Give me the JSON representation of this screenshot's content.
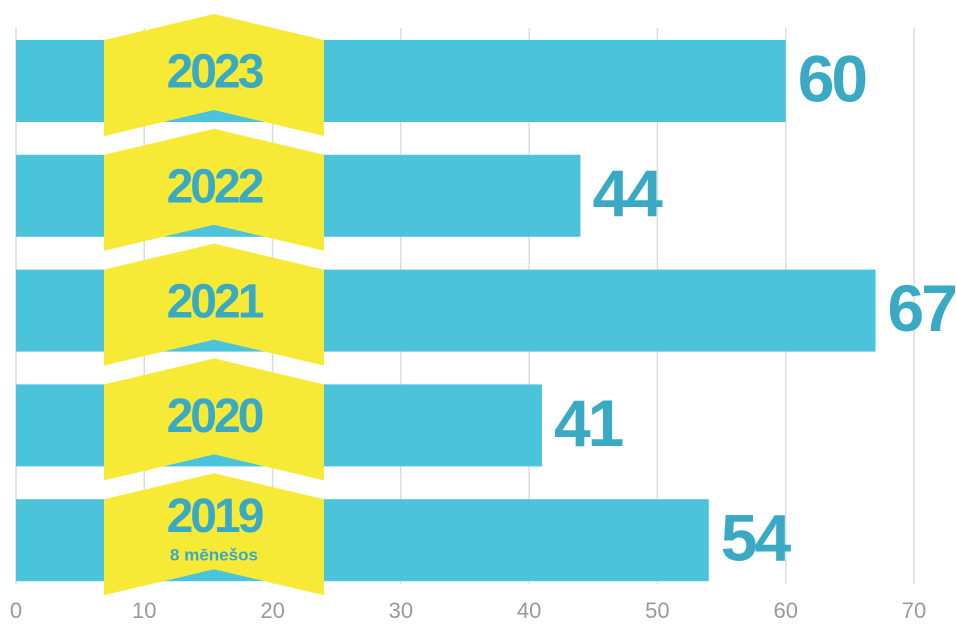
{
  "chart_data": {
    "type": "bar",
    "orientation": "horizontal",
    "categories": [
      "2023",
      "2022",
      "2021",
      "2020",
      "2019"
    ],
    "category_notes": [
      null,
      null,
      null,
      null,
      "8 mēnešos"
    ],
    "values": [
      60,
      44,
      67,
      41,
      54
    ],
    "color": "#4bc3da",
    "label_color": "#3aaac4",
    "tag_color": "#f6ea36",
    "xlim": [
      0,
      70
    ],
    "xticks": [
      0,
      10,
      20,
      30,
      40,
      50,
      60,
      70
    ],
    "grid": true
  }
}
